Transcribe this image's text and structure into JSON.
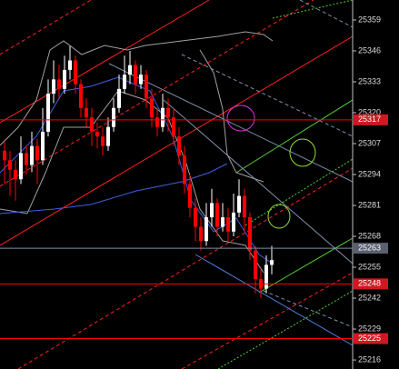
{
  "chart_data": {
    "type": "candlestick",
    "ylim": [
      25212.2,
      25367.4
    ],
    "yticks": [
      25216,
      25229,
      25242,
      25255,
      25268,
      25281,
      25294,
      25307,
      25320,
      25333,
      25346,
      25359
    ],
    "up_color": "#ffffff",
    "down_color": "#ff0000",
    "open": [
      25304,
      25300,
      25296,
      25292,
      25303,
      25298,
      25306,
      25300,
      25312,
      25328,
      25334,
      25330,
      25338,
      25342,
      25332,
      25322,
      25318,
      25312,
      25310,
      25306,
      25314,
      25322,
      25330,
      25336,
      25340,
      25332,
      25336,
      25326,
      25318,
      25314,
      25322,
      25318,
      25310,
      25302,
      25290,
      25280,
      25272,
      25266,
      25276,
      25282,
      25272,
      25276,
      25270,
      25278,
      25285,
      25276,
      25262,
      25250,
      25246,
      25256
    ],
    "high": [
      25308,
      25304,
      25300,
      25310,
      25306,
      25312,
      25309,
      25322,
      25334,
      25342,
      25340,
      25344,
      25348,
      25344,
      25334,
      25326,
      25322,
      25316,
      25314,
      25318,
      25326,
      25336,
      25344,
      25346,
      25342,
      25340,
      25338,
      25330,
      25322,
      25328,
      25326,
      25322,
      25314,
      25306,
      25294,
      25284,
      25276,
      25282,
      25288,
      25284,
      25282,
      25280,
      25286,
      25292,
      25288,
      25278,
      25264,
      25254,
      25260,
      25264
    ],
    "low": [
      25290,
      25285,
      25283,
      25290,
      25294,
      25295,
      25290,
      25298,
      25310,
      25324,
      25326,
      25328,
      25334,
      25328,
      25318,
      25314,
      25306,
      25305,
      25302,
      25304,
      25312,
      25320,
      25328,
      25332,
      25328,
      25330,
      25322,
      25314,
      25310,
      25312,
      25312,
      25306,
      25298,
      25286,
      25276,
      25266,
      25262,
      25264,
      25272,
      25268,
      25270,
      25266,
      25268,
      25276,
      25270,
      25258,
      25244,
      25242,
      25244,
      25252
    ],
    "close": [
      25300,
      25296,
      25292,
      25303,
      25298,
      25306,
      25300,
      25312,
      25328,
      25334,
      25330,
      25338,
      25342,
      25332,
      25322,
      25318,
      25312,
      25310,
      25306,
      25314,
      25322,
      25330,
      25336,
      25340,
      25332,
      25336,
      25326,
      25318,
      25314,
      25322,
      25318,
      25310,
      25302,
      25290,
      25280,
      25272,
      25266,
      25276,
      25282,
      25272,
      25276,
      25270,
      25278,
      25285,
      25276,
      25262,
      25250,
      25246,
      25256,
      25258
    ],
    "price_lines": [
      {
        "value": 25317,
        "color": "#ff0000",
        "label_bg": "#d01820"
      },
      {
        "value": 25263,
        "color": "#7f8fa8",
        "label_bg": "#5a6070"
      },
      {
        "value": 25248,
        "color": "#ff0000",
        "label_bg": "#d01820"
      },
      {
        "value": 25225,
        "color": "#ff0000",
        "label_bg": "#d01820"
      }
    ]
  }
}
